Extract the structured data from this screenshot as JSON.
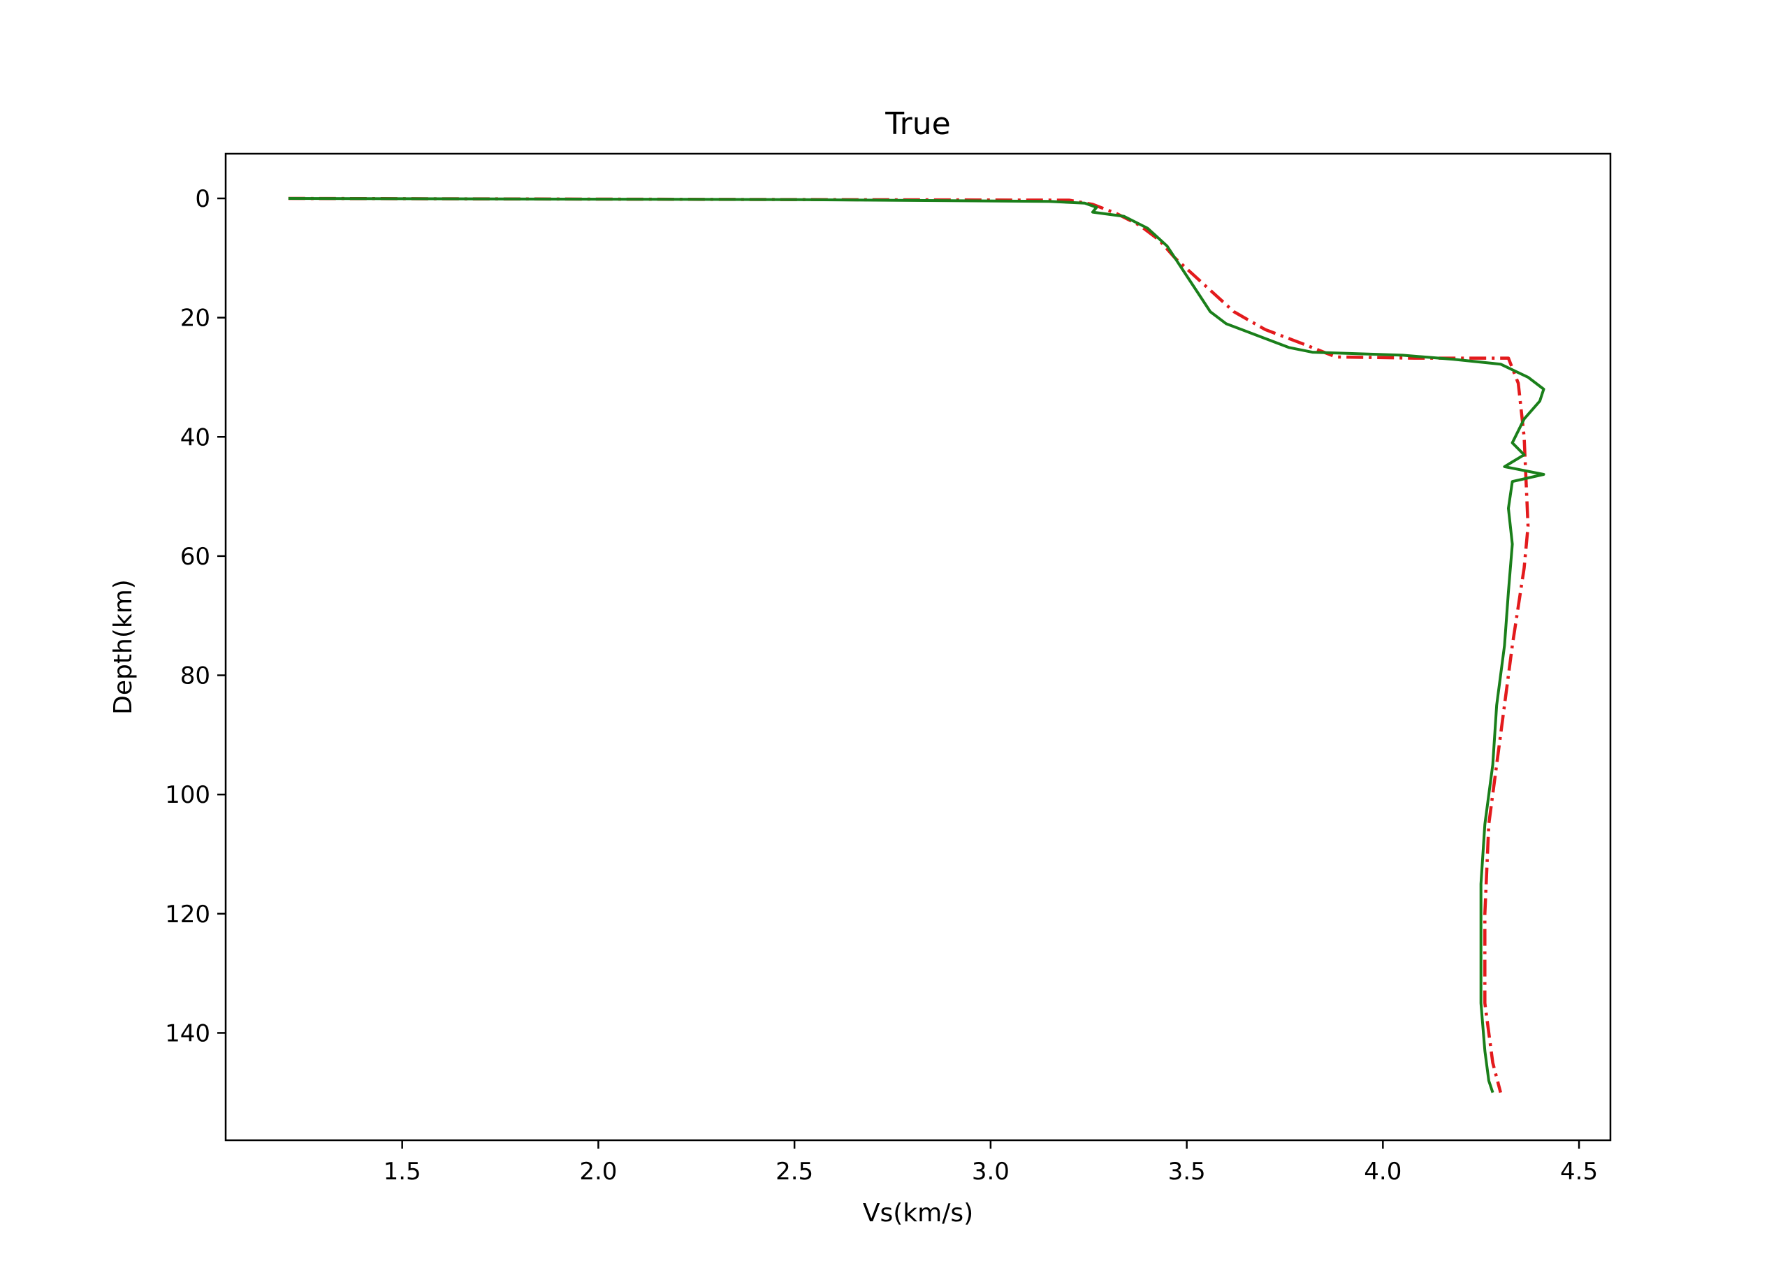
{
  "chart_data": {
    "type": "line",
    "title": "True",
    "xlabel": "Vs(km/s)",
    "ylabel": "Depth(km)",
    "xlim": [
      1.05,
      4.58
    ],
    "ylim": [
      158,
      -7.5
    ],
    "y_inverted": true,
    "grid": false,
    "legend": "none",
    "xticks": [
      "1.5",
      "2.0",
      "2.5",
      "3.0",
      "3.5",
      "4.0",
      "4.5"
    ],
    "yticks": [
      "0",
      "20",
      "40",
      "60",
      "80",
      "100",
      "120",
      "140"
    ],
    "series": [
      {
        "color": "#e31a1c",
        "style": "dash-dot",
        "points": [
          [
            1.21,
            0
          ],
          [
            3.2,
            0.3
          ],
          [
            3.26,
            1
          ],
          [
            3.32,
            2.5
          ],
          [
            3.38,
            4.5
          ],
          [
            3.43,
            7
          ],
          [
            3.47,
            10
          ],
          [
            3.52,
            13
          ],
          [
            3.57,
            16
          ],
          [
            3.62,
            19
          ],
          [
            3.7,
            22
          ],
          [
            3.8,
            24.5
          ],
          [
            3.88,
            26.6
          ],
          [
            4.08,
            26.8
          ],
          [
            4.32,
            26.8
          ],
          [
            4.345,
            31
          ],
          [
            4.36,
            40
          ],
          [
            4.37,
            55
          ],
          [
            4.36,
            62
          ],
          [
            4.33,
            75
          ],
          [
            4.3,
            90
          ],
          [
            4.27,
            105
          ],
          [
            4.26,
            120
          ],
          [
            4.26,
            135
          ],
          [
            4.28,
            145
          ],
          [
            4.3,
            150
          ]
        ]
      },
      {
        "color": "#1a7f1a",
        "style": "solid",
        "points": [
          [
            1.21,
            0
          ],
          [
            2.5,
            0.2
          ],
          [
            3.15,
            0.5
          ],
          [
            3.24,
            0.8
          ],
          [
            3.27,
            1.5
          ],
          [
            3.26,
            2.3
          ],
          [
            3.34,
            3
          ],
          [
            3.4,
            5
          ],
          [
            3.45,
            8
          ],
          [
            3.47,
            10
          ],
          [
            3.5,
            13
          ],
          [
            3.53,
            16
          ],
          [
            3.56,
            19
          ],
          [
            3.6,
            21
          ],
          [
            3.68,
            23
          ],
          [
            3.76,
            25
          ],
          [
            3.82,
            25.8
          ],
          [
            4.05,
            26.3
          ],
          [
            4.18,
            27
          ],
          [
            4.3,
            27.8
          ],
          [
            4.37,
            30
          ],
          [
            4.41,
            32
          ],
          [
            4.4,
            34
          ],
          [
            4.36,
            37
          ],
          [
            4.33,
            41
          ],
          [
            4.36,
            43
          ],
          [
            4.31,
            45
          ],
          [
            4.41,
            46.3
          ],
          [
            4.33,
            47.5
          ],
          [
            4.32,
            52
          ],
          [
            4.33,
            58
          ],
          [
            4.32,
            66
          ],
          [
            4.31,
            75
          ],
          [
            4.29,
            85
          ],
          [
            4.28,
            95
          ],
          [
            4.26,
            105
          ],
          [
            4.25,
            115
          ],
          [
            4.25,
            125
          ],
          [
            4.25,
            135
          ],
          [
            4.26,
            143
          ],
          [
            4.27,
            148
          ],
          [
            4.28,
            150
          ]
        ]
      }
    ]
  }
}
